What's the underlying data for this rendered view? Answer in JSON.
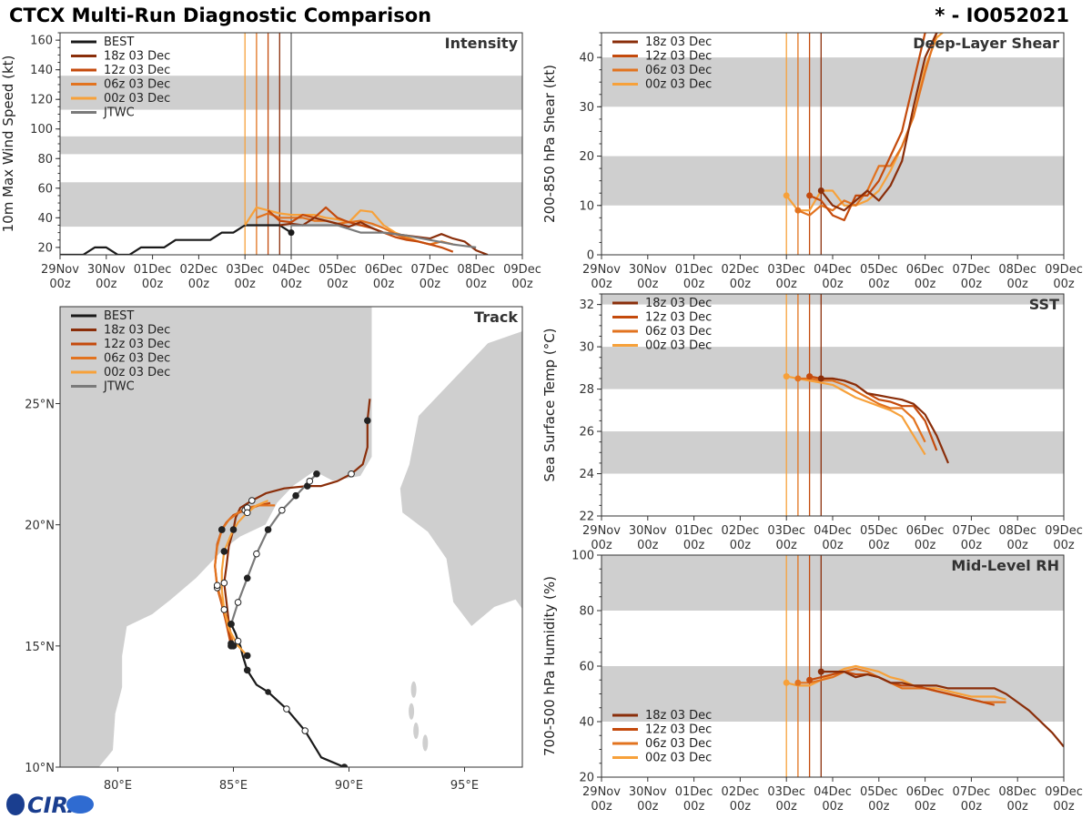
{
  "header": {
    "title": "CTCX Multi-Run Diagnostic Comparison",
    "storm_id": "* - IO052021"
  },
  "logo": {
    "text": "CIRA"
  },
  "colors": {
    "BEST": "#1a1a1a",
    "JTWC": "#7a7a7a",
    "18z 03 Dec": "#8a2e0a",
    "12z 03 Dec": "#c44a0c",
    "06z 03 Dec": "#e2731f",
    "00z 03 Dec": "#f7a13a",
    "band": "#cfcfcf",
    "land": "#cfcfcf"
  },
  "time_axis": {
    "ticks": [
      "29Nov\n00z",
      "30Nov\n00z",
      "01Dec\n00z",
      "02Dec\n00z",
      "03Dec\n00z",
      "04Dec\n00z",
      "05Dec\n00z",
      "06Dec\n00z",
      "07Dec\n00z",
      "08Dec\n00z",
      "09Dec\n00z"
    ],
    "range_days": [
      0,
      10
    ],
    "init_lines": [
      {
        "run": "00z 03 Dec",
        "day": 4.0
      },
      {
        "run": "06z 03 Dec",
        "day": 4.25
      },
      {
        "run": "12z 03 Dec",
        "day": 4.5
      },
      {
        "run": "18z 03 Dec",
        "day": 4.75
      }
    ],
    "analysis_day": 5.0
  },
  "chart_data": [
    {
      "id": "intensity",
      "type": "line",
      "title": "Intensity",
      "ylabel": "10m Max Wind Speed (kt)",
      "ylim": [
        15,
        165
      ],
      "yticks": [
        20,
        40,
        60,
        80,
        100,
        120,
        140,
        160
      ],
      "bands": [
        [
          34,
          64
        ],
        [
          83,
          95
        ],
        [
          113,
          136
        ]
      ],
      "legend": [
        "BEST",
        "18z 03 Dec",
        "12z 03 Dec",
        "06z 03 Dec",
        "00z 03 Dec",
        "JTWC"
      ],
      "series": [
        {
          "name": "BEST",
          "x": [
            0,
            0.5,
            0.75,
            1,
            1.25,
            1.5,
            1.75,
            2,
            2.25,
            2.5,
            2.75,
            3,
            3.25,
            3.5,
            3.75,
            4,
            4.25,
            4.5,
            4.75,
            5
          ],
          "y": [
            15,
            15,
            20,
            20,
            15,
            15,
            20,
            20,
            20,
            25,
            25,
            25,
            25,
            30,
            30,
            35,
            35,
            35,
            35,
            30
          ],
          "end_marker": true
        },
        {
          "name": "00z 03 Dec",
          "x": [
            4,
            4.25,
            4.5,
            4.75,
            5,
            5.25,
            5.5,
            5.75,
            6,
            6.25,
            6.5,
            6.75,
            7,
            7.25,
            7.5,
            7.75,
            8,
            8.25,
            8.5
          ],
          "y": [
            35,
            47,
            45,
            43,
            42,
            42,
            42,
            40,
            39,
            37,
            45,
            44,
            35,
            30,
            27,
            24,
            22,
            24,
            22
          ]
        },
        {
          "name": "06z 03 Dec",
          "x": [
            4.25,
            4.5,
            4.75,
            5,
            5.25,
            5.5,
            5.75,
            6,
            6.25,
            6.5,
            6.75,
            7,
            7.25,
            7.5,
            7.75,
            8,
            8.25,
            8.5
          ],
          "y": [
            40,
            43,
            40,
            40,
            40,
            38,
            38,
            36,
            37,
            38,
            36,
            33,
            29,
            26,
            24,
            22,
            24,
            22
          ]
        },
        {
          "name": "12z 03 Dec",
          "x": [
            4.5,
            4.75,
            5,
            5.25,
            5.5,
            5.75,
            6,
            6.25,
            6.5,
            6.75,
            7,
            7.25,
            7.5,
            7.75,
            8,
            8.25,
            8.5
          ],
          "y": [
            45,
            38,
            37,
            42,
            40,
            47,
            40,
            37,
            35,
            33,
            30,
            27,
            25,
            24,
            22,
            20,
            17
          ]
        },
        {
          "name": "18z 03 Dec",
          "x": [
            4.75,
            5,
            5.25,
            5.5,
            5.75,
            6,
            6.25,
            6.5,
            6.75,
            7,
            7.25,
            7.5,
            7.75,
            8,
            8.25,
            8.5,
            8.75,
            9,
            9.25
          ],
          "y": [
            35,
            36,
            35,
            40,
            38,
            36,
            34,
            37,
            33,
            30,
            29,
            28,
            27,
            26,
            29,
            26,
            24,
            18,
            15
          ]
        },
        {
          "name": "JTWC",
          "x": [
            5,
            5.5,
            6,
            6.5,
            7,
            7.5,
            8,
            8.5,
            9
          ],
          "y": [
            35,
            35,
            35,
            30,
            30,
            28,
            25,
            22,
            20
          ]
        }
      ]
    },
    {
      "id": "shear",
      "type": "line",
      "title": "Deep-Layer Shear",
      "ylabel": "200-850 hPa Shear (kt)",
      "ylim": [
        0,
        45
      ],
      "yticks": [
        0,
        10,
        20,
        30,
        40
      ],
      "bands": [
        [
          10,
          20
        ],
        [
          30,
          40
        ]
      ],
      "legend": [
        "18z 03 Dec",
        "12z 03 Dec",
        "06z 03 Dec",
        "00z 03 Dec"
      ],
      "series": [
        {
          "name": "00z 03 Dec",
          "x": [
            4,
            4.25,
            4.5,
            4.75,
            5,
            5.25,
            5.5,
            5.75,
            6,
            6.25,
            6.5,
            6.75,
            7,
            7.25,
            7.5,
            7.75,
            8,
            8.25,
            8.5
          ],
          "y": [
            12,
            9,
            9,
            13,
            13,
            10,
            10,
            11,
            13,
            17,
            22,
            28,
            38,
            44,
            46,
            46,
            46,
            46,
            46
          ],
          "start_marker": true
        },
        {
          "name": "06z 03 Dec",
          "x": [
            4.25,
            4.5,
            4.75,
            5,
            5.25,
            5.5,
            5.75,
            6,
            6.25,
            6.5,
            6.75,
            7,
            7.25,
            7.5,
            7.75
          ],
          "y": [
            9,
            8,
            10,
            9,
            11,
            10,
            13,
            18,
            18,
            22,
            28,
            37,
            45,
            46,
            46
          ],
          "start_marker": true
        },
        {
          "name": "12z 03 Dec",
          "x": [
            4.5,
            4.75,
            5,
            5.25,
            5.5,
            5.75,
            6,
            6.25,
            6.5,
            6.75,
            7,
            7.25,
            7.5,
            7.75,
            8
          ],
          "y": [
            12,
            11,
            8,
            7,
            12,
            12,
            15,
            20,
            25,
            35,
            45,
            46,
            46,
            46,
            46
          ],
          "start_marker": true
        },
        {
          "name": "18z 03 Dec",
          "x": [
            4.75,
            5,
            5.25,
            5.5,
            5.75,
            6,
            6.25,
            6.5,
            6.75,
            7,
            7.25,
            7.5,
            7.75,
            8,
            8.25,
            8.5
          ],
          "y": [
            13,
            10,
            9,
            11,
            13,
            11,
            14,
            19,
            30,
            40,
            45,
            46,
            46,
            46,
            46,
            46
          ],
          "start_marker": true
        }
      ]
    },
    {
      "id": "sst",
      "type": "line",
      "title": "SST",
      "ylabel": "Sea Surface Temp (°C)",
      "ylim": [
        22,
        32.5
      ],
      "yticks": [
        22,
        24,
        26,
        28,
        30,
        32
      ],
      "bands": [
        [
          24,
          26
        ],
        [
          28,
          30
        ],
        [
          32,
          32.5
        ]
      ],
      "legend": [
        "18z 03 Dec",
        "12z 03 Dec",
        "06z 03 Dec",
        "00z 03 Dec"
      ],
      "series": [
        {
          "name": "00z 03 Dec",
          "x": [
            4,
            4.25,
            4.5,
            4.75,
            5,
            5.25,
            5.5,
            5.75,
            6,
            6.25,
            6.5,
            6.75,
            7
          ],
          "y": [
            28.6,
            28.5,
            28.4,
            28.3,
            28.2,
            27.9,
            27.6,
            27.4,
            27.2,
            27,
            26.7,
            25.8,
            24.9
          ],
          "start_marker": true
        },
        {
          "name": "06z 03 Dec",
          "x": [
            4.25,
            4.5,
            4.75,
            5,
            5.25,
            5.5,
            5.75,
            6,
            6.25,
            6.5,
            6.75,
            7
          ],
          "y": [
            28.5,
            28.5,
            28.4,
            28.4,
            28.2,
            27.9,
            27.6,
            27.3,
            27.1,
            27.1,
            26.6,
            25.5
          ],
          "start_marker": true
        },
        {
          "name": "12z 03 Dec",
          "x": [
            4.5,
            4.75,
            5,
            5.25,
            5.5,
            5.75,
            6,
            6.25,
            6.5,
            6.75,
            7,
            7.25
          ],
          "y": [
            28.6,
            28.5,
            28.5,
            28.4,
            28.2,
            27.8,
            27.5,
            27.4,
            27.2,
            27.2,
            26.5,
            25.1
          ],
          "start_marker": true
        },
        {
          "name": "18z 03 Dec",
          "x": [
            4.75,
            5,
            5.25,
            5.5,
            5.75,
            6,
            6.25,
            6.5,
            6.75,
            7,
            7.25,
            7.5
          ],
          "y": [
            28.5,
            28.5,
            28.4,
            28.2,
            27.8,
            27.7,
            27.6,
            27.5,
            27.3,
            26.8,
            25.8,
            24.5
          ],
          "start_marker": true
        }
      ]
    },
    {
      "id": "rh",
      "type": "line",
      "title": "Mid-Level RH",
      "ylabel": "700-500 hPa Humidity (%)",
      "ylim": [
        20,
        100
      ],
      "yticks": [
        20,
        40,
        60,
        80,
        100
      ],
      "bands": [
        [
          40,
          60
        ],
        [
          80,
          100
        ]
      ],
      "legend": [
        "18z 03 Dec",
        "12z 03 Dec",
        "06z 03 Dec",
        "00z 03 Dec"
      ],
      "series": [
        {
          "name": "00z 03 Dec",
          "x": [
            4,
            4.25,
            4.5,
            4.75,
            5,
            5.25,
            5.5,
            5.75,
            6,
            6.25,
            6.5,
            6.75,
            7,
            7.25,
            7.5,
            7.75,
            8,
            8.25,
            8.5,
            8.75
          ],
          "y": [
            54,
            53,
            53,
            55,
            57,
            59,
            60,
            59,
            58,
            56,
            55,
            53,
            52,
            52,
            51,
            50,
            49,
            49,
            49,
            48
          ],
          "start_marker": true
        },
        {
          "name": "06z 03 Dec",
          "x": [
            4.25,
            4.5,
            4.75,
            5,
            5.25,
            5.5,
            5.75,
            6,
            6.25,
            6.5,
            6.75,
            7,
            7.25,
            7.5,
            7.75,
            8,
            8.25,
            8.5,
            8.75
          ],
          "y": [
            54,
            54,
            55,
            56,
            58,
            59,
            58,
            56,
            54,
            52,
            52,
            52,
            51,
            50,
            49,
            48,
            47,
            47,
            47
          ],
          "start_marker": true
        },
        {
          "name": "12z 03 Dec",
          "x": [
            4.5,
            4.75,
            5,
            5.25,
            5.5,
            5.75,
            6,
            6.25,
            6.5,
            6.75,
            7,
            7.25,
            7.5,
            7.75,
            8,
            8.25,
            8.5
          ],
          "y": [
            55,
            56,
            57,
            58,
            57,
            57,
            56,
            54,
            53,
            53,
            52,
            51,
            50,
            49,
            48,
            47,
            46
          ],
          "start_marker": true
        },
        {
          "name": "18z 03 Dec",
          "x": [
            4.75,
            5,
            5.25,
            5.5,
            5.75,
            6,
            6.25,
            6.5,
            6.75,
            7,
            7.25,
            7.5,
            7.75,
            8,
            8.25,
            8.5,
            8.75,
            9,
            9.25,
            9.5,
            9.75,
            10
          ],
          "y": [
            58,
            58,
            58,
            56,
            57,
            56,
            54,
            54,
            53,
            53,
            53,
            52,
            52,
            52,
            52,
            52,
            50,
            47,
            44,
            40,
            36,
            31
          ],
          "start_marker": true
        }
      ]
    },
    {
      "id": "track",
      "type": "line",
      "title": "Track",
      "xlim": [
        77.5,
        97.5
      ],
      "ylim": [
        10,
        29
      ],
      "xticks": [
        80,
        85,
        90,
        95
      ],
      "xticklabels": [
        "80°E",
        "85°E",
        "90°E",
        "95°E"
      ],
      "yticks": [
        10,
        15,
        20,
        25
      ],
      "yticklabels": [
        "10°N",
        "15°N",
        "20°N",
        "25°N"
      ],
      "legend": [
        "BEST",
        "18z 03 Dec",
        "12z 03 Dec",
        "06z 03 Dec",
        "00z 03 Dec",
        "JTWC"
      ],
      "series": [
        {
          "name": "BEST",
          "lon": [
            89.8,
            88.8,
            88.1,
            87.3,
            86.5,
            86.0,
            85.6,
            85.4,
            85.3,
            85.2,
            85.1,
            85.0,
            84.9
          ],
          "lat": [
            10.0,
            10.4,
            11.5,
            12.4,
            13.1,
            13.4,
            14.0,
            14.6,
            15.0,
            15.2,
            15.5,
            15.7,
            15.9
          ]
        },
        {
          "name": "18z 03 Dec",
          "lon": [
            84.9,
            84.8,
            84.7,
            84.6,
            84.7,
            84.8,
            85.0,
            85.1,
            85.3,
            85.8,
            86.4,
            87.2,
            88.2,
            88.8,
            89.5,
            90.1,
            90.6,
            90.8,
            90.8,
            90.9
          ],
          "lat": [
            15.1,
            16.0,
            16.8,
            17.6,
            18.3,
            19.1,
            19.8,
            20.3,
            20.7,
            21.0,
            21.3,
            21.5,
            21.6,
            21.6,
            21.8,
            22.1,
            22.5,
            23.2,
            24.3,
            25.2
          ]
        },
        {
          "name": "12z 03 Dec",
          "lon": [
            84.9,
            84.7,
            84.5,
            84.3,
            84.2,
            84.3,
            84.5,
            84.7,
            85.0,
            85.5,
            86.1,
            86.6
          ],
          "lat": [
            15.0,
            15.9,
            16.7,
            17.4,
            18.3,
            19.2,
            19.8,
            20.1,
            20.4,
            20.6,
            20.8,
            20.9
          ]
        },
        {
          "name": "06z 03 Dec",
          "lon": [
            85.0,
            84.8,
            84.5,
            84.3,
            84.2,
            84.3,
            84.5,
            84.8,
            85.2,
            85.6,
            86.1,
            86.8
          ],
          "lat": [
            15.0,
            15.9,
            16.8,
            17.5,
            18.3,
            19.1,
            19.8,
            20.2,
            20.5,
            20.7,
            20.8,
            20.8
          ]
        },
        {
          "name": "00z 03 Dec",
          "lon": [
            85.6,
            85.2,
            84.8,
            84.6,
            84.5,
            84.5,
            84.6,
            84.9,
            85.2,
            85.6,
            86.0,
            86.5
          ],
          "lat": [
            14.6,
            15.0,
            15.7,
            16.5,
            17.3,
            18.1,
            18.9,
            19.6,
            20.1,
            20.5,
            20.8,
            21.0
          ]
        },
        {
          "name": "JTWC",
          "lon": [
            84.9,
            85.2,
            85.6,
            86.0,
            86.5,
            87.1,
            87.7,
            88.3,
            88.6
          ],
          "lat": [
            15.9,
            16.8,
            17.8,
            18.8,
            19.8,
            20.6,
            21.2,
            21.8,
            22.1
          ]
        }
      ]
    }
  ]
}
